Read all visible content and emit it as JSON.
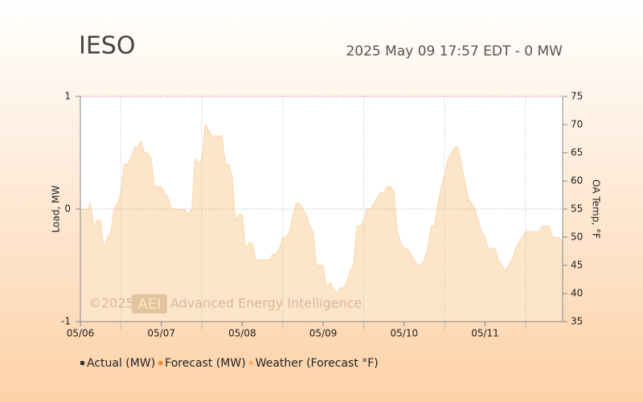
{
  "chart_data": {
    "type": "area",
    "title": "IESO",
    "subtitle": "2025 May 09 17:57 EDT - 0 MW",
    "ylabel": "Load, MW",
    "y2label": "OA Temp, °F",
    "watermark": {
      "copyright": "©2025",
      "logo": "AEI",
      "text": "Advanced Energy Intelligence"
    },
    "xlim": [
      0,
      143
    ],
    "xticks": [
      {
        "value": 0,
        "label": "05/06"
      },
      {
        "value": 24,
        "label": "05/07"
      },
      {
        "value": 48,
        "label": "05/08"
      },
      {
        "value": 72,
        "label": "05/09"
      },
      {
        "value": 96,
        "label": "05/10"
      },
      {
        "value": 120,
        "label": "05/11"
      }
    ],
    "xminorticks": [
      12,
      36,
      60,
      84,
      108,
      132
    ],
    "ylim": [
      -1,
      1
    ],
    "yticks": [
      -1,
      0,
      1
    ],
    "y2lim": [
      35,
      75
    ],
    "y2ticks": [
      35,
      40,
      45,
      50,
      55,
      60,
      65,
      70,
      75
    ],
    "grid": true,
    "legend": "bottom",
    "series": [
      {
        "name": "Actual (MW)",
        "color": "#333333"
      },
      {
        "name": "Forecast (MW)",
        "color": "#f08a24"
      },
      {
        "name": "Weather (Forecast °F)",
        "color": "#f5b461",
        "axis": "y2",
        "x": [
          0,
          1,
          2,
          3,
          4,
          5,
          6,
          7,
          8,
          9,
          10,
          11,
          12,
          13,
          14,
          15,
          16,
          17,
          18,
          19,
          20,
          21,
          22,
          23,
          24,
          25,
          26,
          27,
          28,
          29,
          30,
          31,
          32,
          33,
          34,
          35,
          36,
          37,
          38,
          39,
          40,
          41,
          42,
          43,
          44,
          45,
          46,
          47,
          48,
          49,
          50,
          51,
          52,
          53,
          54,
          55,
          56,
          57,
          58,
          59,
          60,
          61,
          62,
          63,
          64,
          65,
          66,
          67,
          68,
          69,
          70,
          71,
          72,
          73,
          74,
          75,
          76,
          77,
          78,
          79,
          80,
          81,
          82,
          83,
          84,
          85,
          86,
          87,
          88,
          89,
          90,
          91,
          92,
          93,
          94,
          95,
          96,
          97,
          98,
          99,
          100,
          101,
          102,
          103,
          104,
          105,
          106,
          107,
          108,
          109,
          110,
          111,
          112,
          113,
          114,
          115,
          116,
          117,
          118,
          119,
          120,
          121,
          122,
          123,
          124,
          125,
          126,
          127,
          128,
          129,
          130,
          131,
          132,
          133,
          134,
          135,
          136,
          137,
          138,
          139,
          140,
          141,
          142,
          143
        ],
        "values": [
          55,
          55,
          55,
          56,
          52,
          53,
          53,
          48,
          50,
          51,
          55,
          56,
          58,
          63,
          63,
          64,
          66,
          66,
          67,
          65,
          65,
          64,
          59,
          59,
          59,
          58,
          57,
          55,
          55,
          55,
          55,
          55,
          54,
          55,
          64,
          63,
          64,
          70,
          69,
          68,
          68,
          68,
          68,
          63,
          63,
          61,
          53,
          54,
          54,
          48,
          49,
          49,
          46,
          46,
          46,
          46,
          46,
          47,
          47,
          48,
          50,
          50,
          51,
          54,
          56,
          56,
          55,
          54,
          52,
          51,
          45,
          45,
          45,
          41,
          42,
          41,
          40,
          41,
          41,
          42,
          44,
          45,
          52,
          52,
          53,
          55,
          55,
          56,
          57,
          58,
          58,
          59,
          59,
          58,
          51,
          49,
          48,
          48,
          47,
          46,
          45,
          45,
          46,
          48,
          52,
          52,
          56,
          59,
          61,
          64,
          65,
          66,
          66,
          63,
          60,
          57,
          56,
          55,
          53,
          51,
          50,
          48,
          48,
          48,
          46,
          45,
          44,
          45,
          46,
          48,
          49,
          50,
          51,
          51,
          51,
          51,
          51,
          52,
          52,
          52,
          50,
          50,
          50,
          49
        ]
      }
    ]
  }
}
